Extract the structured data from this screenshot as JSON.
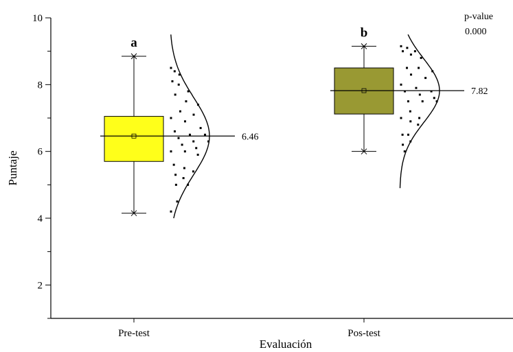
{
  "chart_data": {
    "type": "box",
    "xlabel": "Evaluación",
    "ylabel": "Puntaje",
    "ylim": [
      1,
      10
    ],
    "yticks": [
      2,
      4,
      6,
      8,
      10
    ],
    "categories": [
      "Pre-test",
      "Pos-test"
    ],
    "groups": [
      {
        "name": "Pre-test",
        "color": "#FFFF1A",
        "letter": "a",
        "min": 4.15,
        "q1": 5.7,
        "median": 6.46,
        "mean": 6.46,
        "q3": 7.05,
        "max": 8.85,
        "mean_label": "6.46",
        "points": [
          8.5,
          8.4,
          8.3,
          8.1,
          8.0,
          7.8,
          7.7,
          7.5,
          7.4,
          7.2,
          7.1,
          7.0,
          6.9,
          6.7,
          6.6,
          6.5,
          6.5,
          6.4,
          6.3,
          6.3,
          6.2,
          6.1,
          6.0,
          6.0,
          5.9,
          5.6,
          5.5,
          5.4,
          5.3,
          5.2,
          5.0,
          5.0,
          4.5,
          4.2
        ]
      },
      {
        "name": "Pos-test",
        "color": "#999933",
        "letter": "b",
        "min": 6.0,
        "q1": 7.12,
        "median": 7.82,
        "mean": 7.82,
        "q3": 8.5,
        "max": 9.15,
        "mean_label": "7.82",
        "points": [
          9.15,
          9.1,
          9.0,
          9.0,
          8.9,
          8.8,
          8.5,
          8.5,
          8.4,
          8.3,
          8.2,
          8.0,
          7.9,
          7.8,
          7.8,
          7.7,
          7.6,
          7.5,
          7.5,
          7.5,
          7.2,
          7.0,
          7.0,
          6.9,
          6.8,
          6.5,
          6.5,
          6.3,
          6.2,
          6.0
        ]
      }
    ],
    "annotation": {
      "label": "p-value",
      "value": "0.000"
    }
  }
}
